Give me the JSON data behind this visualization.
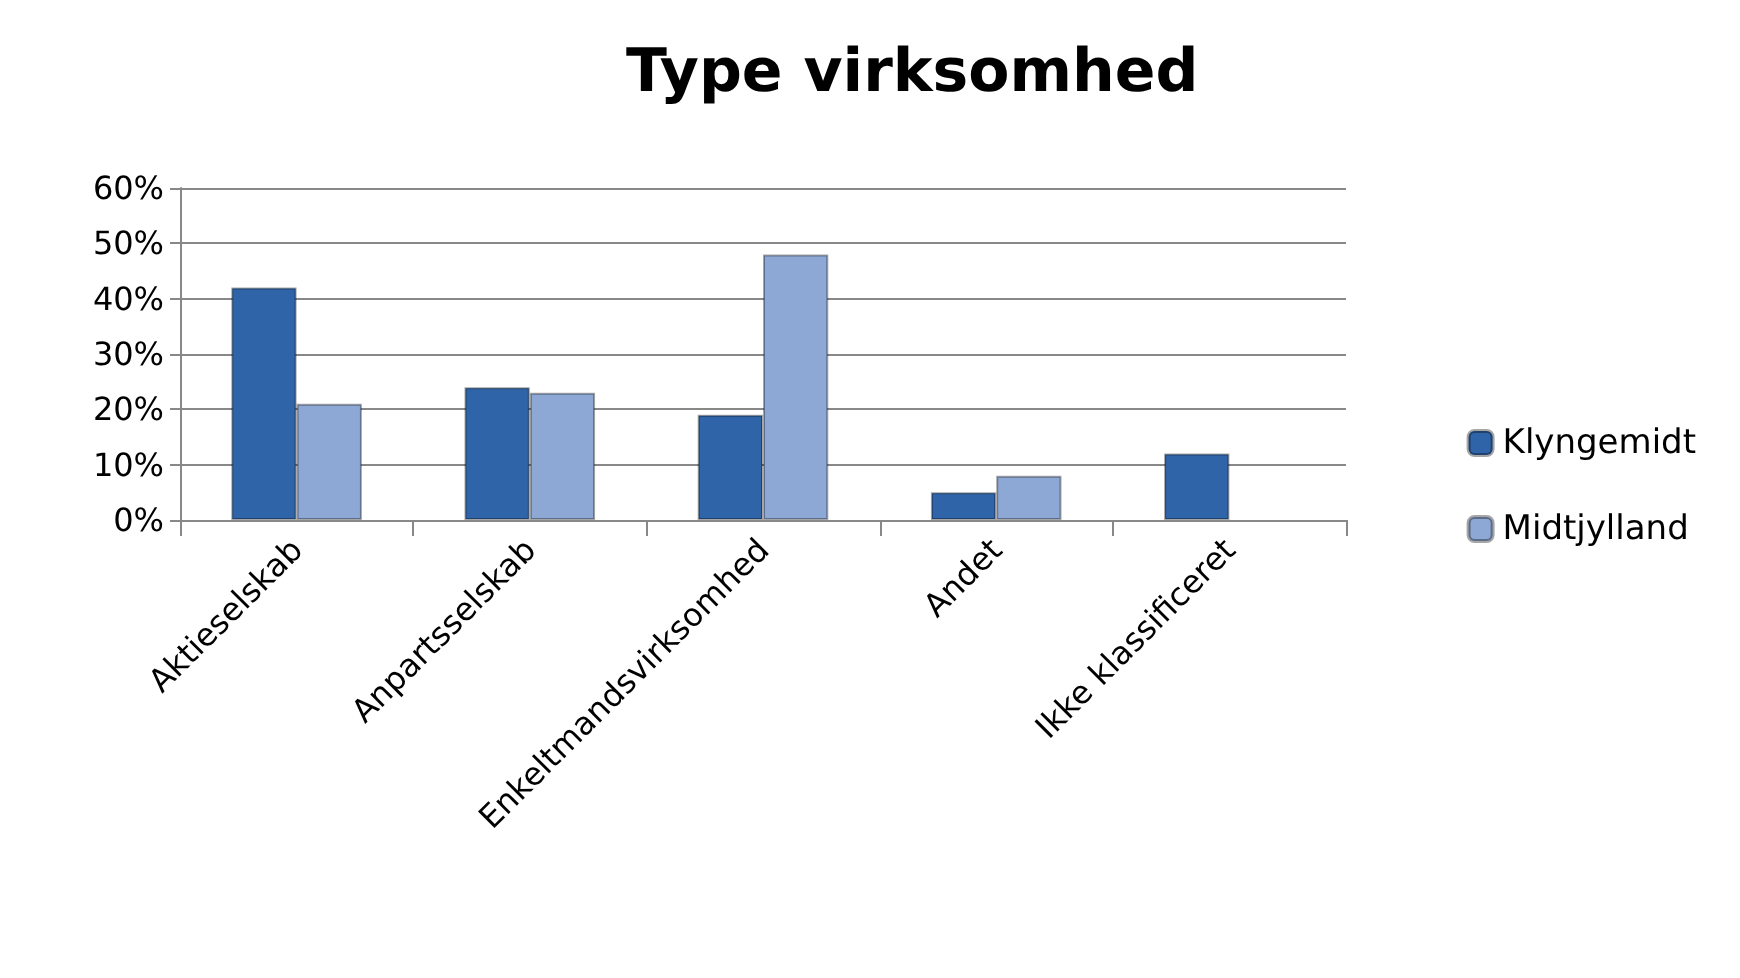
{
  "chart_data": {
    "type": "bar",
    "title": "Type virksomhed",
    "categories": [
      "Aktieselskab",
      "Anpartsselskab",
      "Enkeltmandsvirksomhed",
      "Andet",
      "Ikke klassificeret"
    ],
    "series": [
      {
        "name": "Klyngemidt",
        "color": "#2f64a8",
        "values": [
          42,
          24,
          19,
          5,
          12
        ]
      },
      {
        "name": "Midtjylland",
        "color": "#8ea8d6",
        "values": [
          21,
          23,
          48,
          8,
          null
        ]
      }
    ],
    "ylim": [
      0,
      60
    ],
    "yticks": [
      {
        "value": 0,
        "label": "0%"
      },
      {
        "value": 10,
        "label": "10%"
      },
      {
        "value": 20,
        "label": "20%"
      },
      {
        "value": 30,
        "label": "30%"
      },
      {
        "value": 40,
        "label": "40%"
      },
      {
        "value": 50,
        "label": "50%"
      },
      {
        "value": 60,
        "label": "60%"
      }
    ],
    "grid": "y",
    "legend": "right"
  }
}
